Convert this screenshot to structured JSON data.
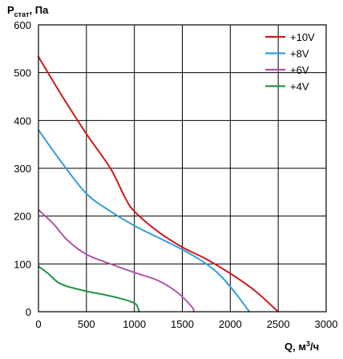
{
  "chart_data": {
    "type": "line",
    "ylabel": {
      "main": "P",
      "sub": "стат",
      "rest": ", Па"
    },
    "xlabel": {
      "main": "Q, м",
      "sup": "3",
      "rest": "/ч"
    },
    "xlim": [
      0,
      3000
    ],
    "ylim": [
      0,
      600
    ],
    "xticks": [
      0,
      500,
      1000,
      1500,
      2000,
      2500,
      3000
    ],
    "yticks": [
      0,
      100,
      200,
      300,
      400,
      500,
      600
    ],
    "grid": true,
    "legend_position": "top-right",
    "series": [
      {
        "name": "+10V",
        "color": "#cc1a1a",
        "points": [
          [
            0,
            533
          ],
          [
            250,
            450
          ],
          [
            500,
            372
          ],
          [
            750,
            300
          ],
          [
            900,
            240
          ],
          [
            1000,
            210
          ],
          [
            1250,
            167
          ],
          [
            1500,
            135
          ],
          [
            1750,
            110
          ],
          [
            2000,
            80
          ],
          [
            2250,
            45
          ],
          [
            2500,
            0
          ]
        ]
      },
      {
        "name": "+8V",
        "color": "#2fa0d6",
        "points": [
          [
            0,
            380
          ],
          [
            250,
            310
          ],
          [
            500,
            247
          ],
          [
            750,
            210
          ],
          [
            1000,
            180
          ],
          [
            1250,
            155
          ],
          [
            1500,
            130
          ],
          [
            1750,
            100
          ],
          [
            1900,
            75
          ],
          [
            2050,
            40
          ],
          [
            2200,
            0
          ]
        ]
      },
      {
        "name": "+6V",
        "color": "#b055a6",
        "points": [
          [
            0,
            213
          ],
          [
            150,
            185
          ],
          [
            300,
            150
          ],
          [
            500,
            120
          ],
          [
            750,
            100
          ],
          [
            1000,
            82
          ],
          [
            1250,
            65
          ],
          [
            1450,
            40
          ],
          [
            1600,
            10
          ],
          [
            1620,
            0
          ]
        ]
      },
      {
        "name": "+4V",
        "color": "#1f9446",
        "points": [
          [
            0,
            95
          ],
          [
            100,
            80
          ],
          [
            200,
            62
          ],
          [
            300,
            53
          ],
          [
            500,
            43
          ],
          [
            700,
            35
          ],
          [
            850,
            28
          ],
          [
            950,
            22
          ],
          [
            1020,
            15
          ],
          [
            1050,
            0
          ]
        ]
      }
    ]
  }
}
